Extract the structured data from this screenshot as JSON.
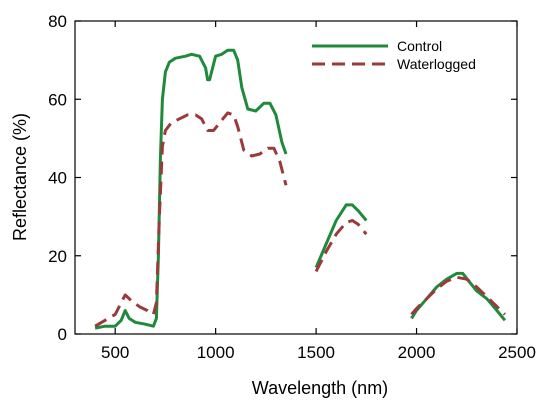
{
  "chart_data": {
    "type": "line",
    "xlabel": "Wavelength (nm)",
    "ylabel": "Reflectance (%)",
    "xlim": [
      300,
      2500
    ],
    "ylim": [
      0,
      80
    ],
    "xticks": [
      500,
      1000,
      1500,
      2000,
      2500
    ],
    "yticks": [
      0,
      20,
      40,
      60,
      80
    ],
    "grid": false,
    "legend_position": "top-right",
    "series": [
      {
        "name": "Control",
        "color": "#1f8a3a",
        "style": "solid",
        "segments": [
          [
            [
              400,
              1.5
            ],
            [
              450,
              2
            ],
            [
              500,
              2
            ],
            [
              530,
              3.5
            ],
            [
              550,
              6
            ],
            [
              570,
              4
            ],
            [
              600,
              3
            ],
            [
              650,
              2.5
            ],
            [
              690,
              2
            ],
            [
              705,
              4
            ],
            [
              715,
              20
            ],
            [
              725,
              45
            ],
            [
              735,
              60
            ],
            [
              750,
              67
            ],
            [
              770,
              69.5
            ],
            [
              800,
              70.5
            ],
            [
              850,
              71
            ],
            [
              880,
              71.5
            ],
            [
              920,
              71
            ],
            [
              950,
              68
            ],
            [
              960,
              65
            ],
            [
              970,
              65
            ],
            [
              985,
              68
            ],
            [
              1000,
              71
            ],
            [
              1030,
              71.5
            ],
            [
              1060,
              72.5
            ],
            [
              1090,
              72.5
            ],
            [
              1110,
              70
            ],
            [
              1130,
              63
            ],
            [
              1160,
              57.5
            ],
            [
              1200,
              57
            ],
            [
              1240,
              59
            ],
            [
              1270,
              59
            ],
            [
              1300,
              56
            ],
            [
              1330,
              49
            ],
            [
              1350,
              46
            ]
          ],
          [
            [
              1500,
              17
            ],
            [
              1550,
              23
            ],
            [
              1600,
              29
            ],
            [
              1650,
              33
            ],
            [
              1680,
              33
            ],
            [
              1710,
              31.5
            ],
            [
              1750,
              29
            ]
          ],
          [
            [
              1975,
              4
            ],
            [
              2000,
              6
            ],
            [
              2050,
              9
            ],
            [
              2100,
              12
            ],
            [
              2150,
              14
            ],
            [
              2200,
              15.5
            ],
            [
              2230,
              15.5
            ],
            [
              2260,
              13.5
            ],
            [
              2300,
              11
            ],
            [
              2350,
              9
            ],
            [
              2400,
              6
            ],
            [
              2440,
              3.5
            ]
          ]
        ]
      },
      {
        "name": "Waterlogged",
        "color": "#9b3a3a",
        "style": "dashed",
        "segments": [
          [
            [
              400,
              2
            ],
            [
              450,
              3.5
            ],
            [
              500,
              5
            ],
            [
              530,
              8
            ],
            [
              550,
              10
            ],
            [
              580,
              8.5
            ],
            [
              620,
              7
            ],
            [
              660,
              6
            ],
            [
              690,
              5
            ],
            [
              705,
              8
            ],
            [
              720,
              30
            ],
            [
              735,
              48
            ],
            [
              750,
              52
            ],
            [
              780,
              54
            ],
            [
              820,
              55
            ],
            [
              860,
              56
            ],
            [
              900,
              56
            ],
            [
              930,
              55
            ],
            [
              960,
              52
            ],
            [
              990,
              52
            ],
            [
              1020,
              54
            ],
            [
              1060,
              56.5
            ],
            [
              1090,
              56
            ],
            [
              1110,
              53
            ],
            [
              1140,
              47
            ],
            [
              1180,
              45.5
            ],
            [
              1220,
              46
            ],
            [
              1260,
              47.5
            ],
            [
              1290,
              47.5
            ],
            [
              1320,
              44
            ],
            [
              1350,
              38
            ]
          ],
          [
            [
              1500,
              16
            ],
            [
              1550,
              21
            ],
            [
              1600,
              25.5
            ],
            [
              1650,
              28.5
            ],
            [
              1680,
              29
            ],
            [
              1710,
              28
            ],
            [
              1750,
              25.5
            ]
          ],
          [
            [
              1975,
              5
            ],
            [
              2000,
              6.5
            ],
            [
              2050,
              9
            ],
            [
              2100,
              11.5
            ],
            [
              2150,
              13.5
            ],
            [
              2200,
              14.5
            ],
            [
              2250,
              14
            ],
            [
              2300,
              12
            ],
            [
              2350,
              9.5
            ],
            [
              2400,
              7
            ],
            [
              2440,
              5
            ]
          ]
        ]
      }
    ]
  }
}
